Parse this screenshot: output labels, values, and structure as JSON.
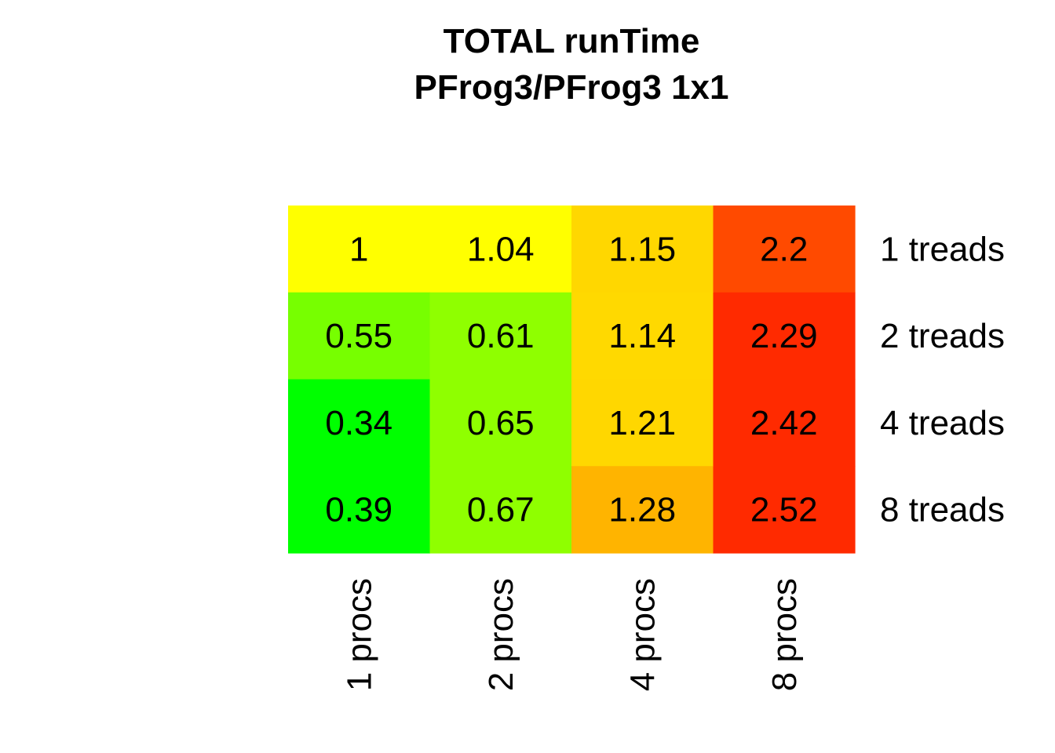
{
  "chart_data": {
    "type": "heatmap",
    "title": "TOTAL  runTime",
    "subtitle": "PFrog3/PFrog3 1x1",
    "columns": [
      "1 procs",
      "2 procs",
      "4 procs",
      "8 procs"
    ],
    "rows": [
      "1 treads",
      "2 treads",
      "4 treads",
      "8 treads"
    ],
    "values": [
      [
        1,
        1.04,
        1.15,
        2.2
      ],
      [
        0.55,
        0.61,
        1.14,
        2.29
      ],
      [
        0.34,
        0.65,
        1.21,
        2.42
      ],
      [
        0.39,
        0.67,
        1.28,
        2.52
      ]
    ],
    "value_labels": [
      [
        "1",
        "1.04",
        "1.15",
        "2.2"
      ],
      [
        "0.55",
        "0.61",
        "1.14",
        "2.29"
      ],
      [
        "0.34",
        "0.65",
        "1.21",
        "2.42"
      ],
      [
        "0.39",
        "0.67",
        "1.28",
        "2.52"
      ]
    ],
    "cell_colors": [
      [
        "#FFFF00",
        "#FFFF00",
        "#FFD700",
        "#FF4A00"
      ],
      [
        "#77FF00",
        "#8FFF00",
        "#FFD900",
        "#FF2A00"
      ],
      [
        "#00FF00",
        "#8FFF00",
        "#FFD700",
        "#FF2A00"
      ],
      [
        "#00FF00",
        "#8FFF00",
        "#FFB400",
        "#FF2A00"
      ]
    ],
    "legend": "none",
    "grid": false
  }
}
